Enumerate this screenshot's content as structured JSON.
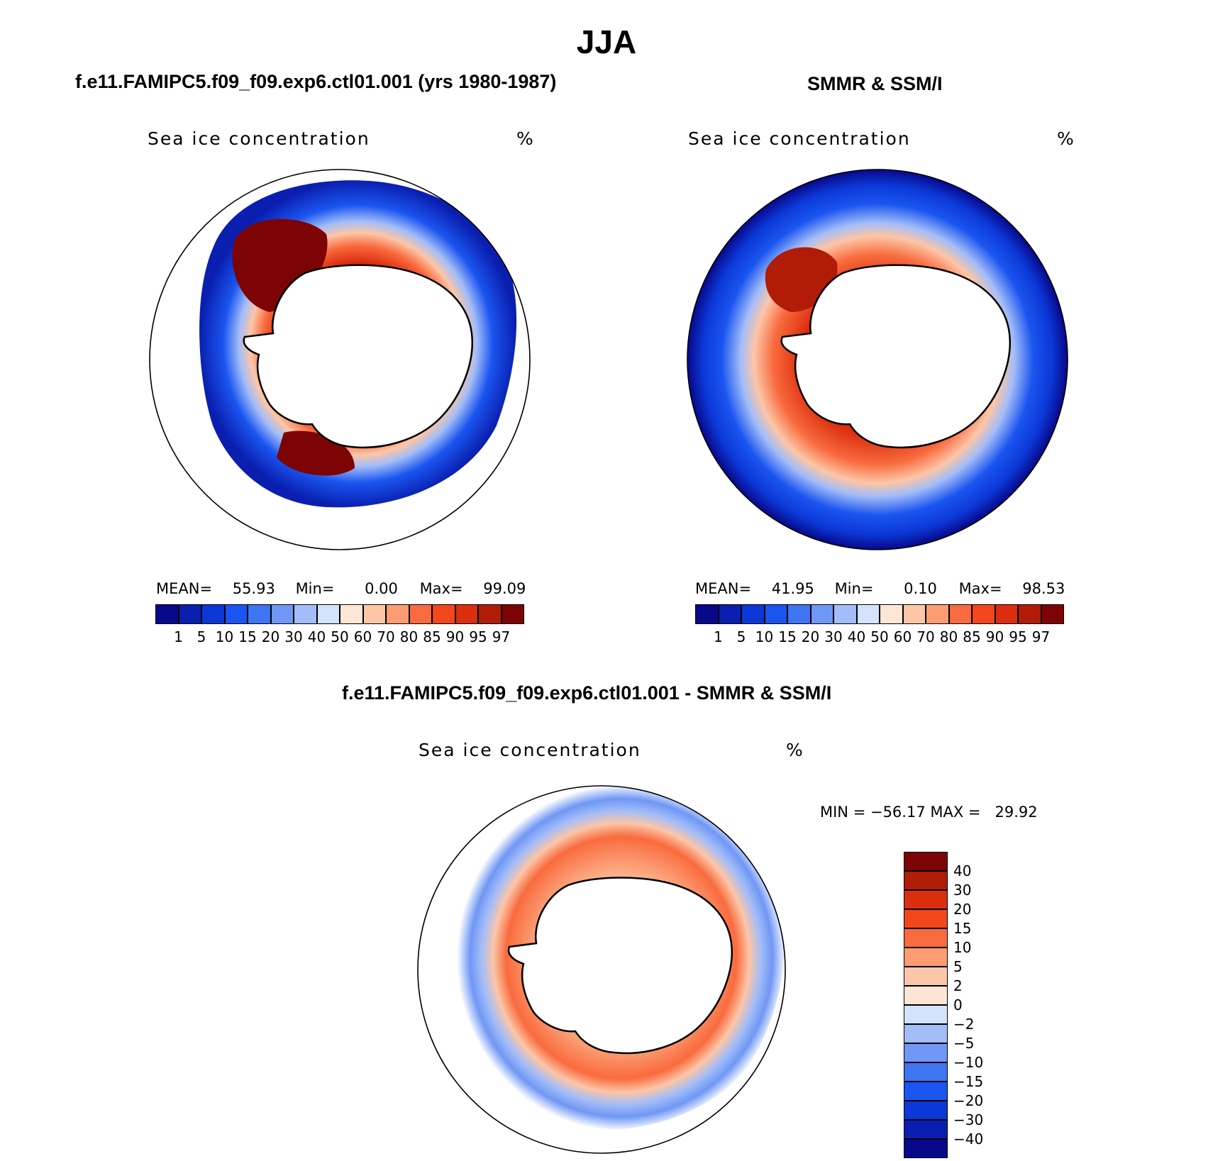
{
  "title": "JJA",
  "panels": [
    {
      "title": "f.e11.FAMIPC5.f09_f09.exp6.ctl01.001 (yrs 1980-1987)",
      "field_label": "Sea ice concentration",
      "unit": "%",
      "stats": {
        "mean_label": "MEAN=",
        "mean": "55.93",
        "min_label": "Min=",
        "min": "0.00",
        "max_label": "Max=",
        "max": "99.09"
      }
    },
    {
      "title": "SMMR & SSM/I",
      "field_label": "Sea ice concentration",
      "unit": "%",
      "stats": {
        "mean_label": "MEAN=",
        "mean": "41.95",
        "min_label": "Min=",
        "min": "0.10",
        "max_label": "Max=",
        "max": "98.53"
      }
    }
  ],
  "diff_panel": {
    "title": "f.e11.FAMIPC5.f09_f09.exp6.ctl01.001 - SMMR & SSM/I",
    "field_label": "Sea ice concentration",
    "unit": "%",
    "minmax": "MIN = −56.17 MAX =   29.92"
  },
  "colorbar_abs": {
    "labels": [
      "1",
      "5",
      "10",
      "15",
      "20",
      "30",
      "40",
      "50",
      "60",
      "70",
      "80",
      "85",
      "90",
      "95",
      "97"
    ],
    "colors": [
      "#08088a",
      "#0a1fb0",
      "#0b38d6",
      "#1a55f0",
      "#3f74f2",
      "#6f97f5",
      "#a3bdf8",
      "#d3e3fb",
      "#fde6d5",
      "#fcc6a7",
      "#fb9c72",
      "#f96b3e",
      "#f2461b",
      "#db2e0e",
      "#b01c08",
      "#7d0404"
    ]
  },
  "colorbar_diff": {
    "labels": [
      "40",
      "30",
      "20",
      "15",
      "10",
      "5",
      "2",
      "0",
      "−2",
      "−5",
      "−10",
      "−15",
      "−20",
      "−30",
      "−40"
    ],
    "colors": [
      "#7d0404",
      "#b01c08",
      "#db2e0e",
      "#f2461b",
      "#f96b3e",
      "#fb9c72",
      "#fcc6a7",
      "#fde6d5",
      "#d3e3fb",
      "#a3bdf8",
      "#6f97f5",
      "#3f74f2",
      "#1a55f0",
      "#0b38d6",
      "#0a1fb0",
      "#08088a"
    ]
  }
}
